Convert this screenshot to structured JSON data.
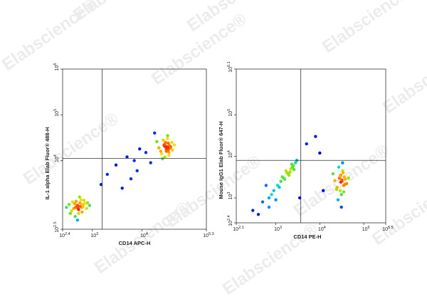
{
  "watermark": "Elabscience®",
  "chart_data": [
    {
      "type": "scatter",
      "xlabel": "CD14 APC-H",
      "ylabel": "IL-1 alpha Elab Fluor® 488-H",
      "xscale": "log",
      "yscale": "log",
      "xlim": [
        251.19,
        199526
      ],
      "ylim": [
        316.23,
        1000000
      ],
      "xticks": [
        {
          "value": 251.19,
          "label": "10",
          "exponent": "2.4"
        },
        {
          "value": 1000,
          "label": "10",
          "exponent": "3"
        },
        {
          "value": 10000,
          "label": "10",
          "exponent": "4"
        },
        {
          "value": 199526,
          "label": "10",
          "exponent": "5.3"
        }
      ],
      "yticks": [
        {
          "value": 316.23,
          "label": "10",
          "exponent": "2.5"
        },
        {
          "value": 10000,
          "label": "10",
          "exponent": "4"
        },
        {
          "value": 100000,
          "label": "10",
          "exponent": "5"
        },
        {
          "value": 1000000,
          "label": "10",
          "exponent": "6"
        }
      ],
      "gate": {
        "x": 1580,
        "y": 11200
      },
      "x": [
        420,
        500,
        560,
        380,
        610,
        470,
        530,
        650,
        340,
        700,
        450,
        590,
        520,
        480,
        400,
        760,
        550,
        620,
        300,
        880,
        500,
        440,
        570,
        680,
        360,
        530,
        460,
        800,
        620,
        510,
        32000,
        28000,
        35000,
        30000,
        38000,
        25000,
        33000,
        41000,
        29000,
        36000,
        22000,
        31000,
        34000,
        27000,
        30000,
        45000,
        26000,
        37000,
        33000,
        24000,
        29000,
        32000,
        35000,
        20000,
        31000,
        40000,
        28000,
        34000,
        30000,
        33000,
        3000,
        5000,
        8000,
        12000,
        6000,
        2000,
        15000,
        9000,
        4000,
        1500,
        18000,
        7000
      ],
      "values": [
        900,
        1050,
        1200,
        800,
        950,
        1300,
        700,
        1000,
        1100,
        1150,
        600,
        1400,
        880,
        1000,
        1250,
        900,
        1600,
        750,
        950,
        1050,
        500,
        1150,
        1000,
        1350,
        700,
        850,
        950,
        1200,
        1100,
        1000,
        18000,
        22000,
        15000,
        25000,
        20000,
        14000,
        30000,
        17000,
        12000,
        21000,
        19000,
        16000,
        24000,
        28000,
        20000,
        22000,
        11000,
        19000,
        35000,
        16000,
        23000,
        20000,
        13000,
        26000,
        18000,
        25000,
        21000,
        17000,
        20000,
        19000,
        8000,
        12000,
        6000,
        15000,
        4000,
        5000,
        9000,
        18000,
        2500,
        3000,
        40000,
        10000
      ]
    },
    {
      "type": "scatter",
      "xlabel": "CD14 PE-H",
      "ylabel": "Mouse IgG1 Elab Fluor® 647-H",
      "xscale": "log",
      "yscale": "log",
      "xlim": [
        125.89,
        316228
      ],
      "ylim": [
        251.19,
        1258925
      ],
      "xticks": [
        {
          "value": 125.89,
          "label": "10",
          "exponent": "2.1"
        },
        {
          "value": 1000,
          "label": "10",
          "exponent": "3"
        },
        {
          "value": 10000,
          "label": "10",
          "exponent": "4"
        },
        {
          "value": 100000,
          "label": "10",
          "exponent": "5"
        },
        {
          "value": 316228,
          "label": "10",
          "exponent": "5.5"
        }
      ],
      "yticks": [
        {
          "value": 251.19,
          "label": "10",
          "exponent": "2.4"
        },
        {
          "value": 1000,
          "label": "10",
          "exponent": "3"
        },
        {
          "value": 10000,
          "label": "10",
          "exponent": "4"
        },
        {
          "value": 100000,
          "label": "10",
          "exponent": "5"
        },
        {
          "value": 1258925,
          "label": "10",
          "exponent": "6.1"
        }
      ],
      "gate": {
        "x": 3700,
        "y": 8000
      },
      "x": [
        1800,
        2200,
        1500,
        2500,
        1300,
        2800,
        2000,
        1100,
        1700,
        2400,
        900,
        2100,
        1600,
        3000,
        1900,
        1200,
        2600,
        1400,
        2300,
        700,
        32000,
        28000,
        35000,
        30000,
        38000,
        25000,
        33000,
        41000,
        29000,
        36000,
        22000,
        31000,
        34000,
        27000,
        30000,
        45000,
        26000,
        37000,
        33000,
        24000,
        29000,
        32000,
        35000,
        20000,
        31000,
        300,
        500,
        800,
        400,
        1000,
        5000,
        8000,
        12000,
        600,
        10000,
        3500,
        700
      ],
      "values": [
        4000,
        5000,
        3000,
        6000,
        2500,
        7000,
        3500,
        2000,
        4500,
        5500,
        1500,
        4200,
        2800,
        8000,
        3800,
        1800,
        4800,
        3200,
        6500,
        1000,
        2500,
        3000,
        2000,
        3500,
        2800,
        1800,
        4500,
        2200,
        1500,
        3200,
        2600,
        1200,
        4000,
        5500,
        2400,
        3000,
        900,
        2100,
        7000,
        1600,
        3300,
        2700,
        1400,
        3800,
        600,
        500,
        800,
        1200,
        400,
        900,
        20000,
        30000,
        1500,
        2000,
        12000,
        1000,
        600
      ]
    }
  ]
}
